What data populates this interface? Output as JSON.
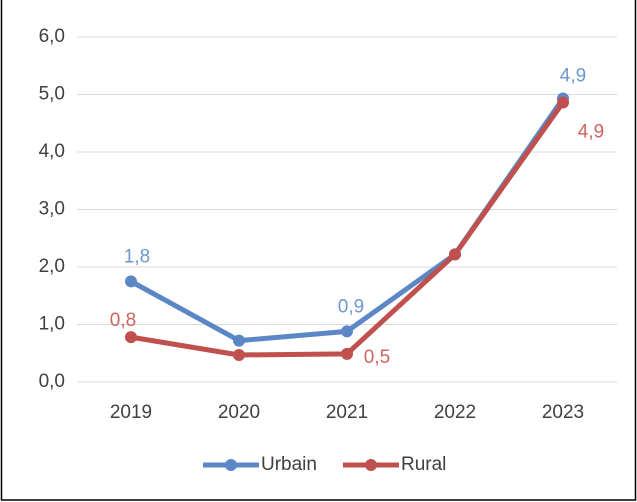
{
  "chart_data": {
    "type": "line",
    "categories": [
      "2019",
      "2020",
      "2021",
      "2022",
      "2023"
    ],
    "series": [
      {
        "name": "Urbain",
        "color": "#5b87c6",
        "label_color": "#6f97cf",
        "values": [
          1.75,
          0.72,
          0.88,
          2.22,
          4.93
        ],
        "value_labels": [
          "1,8",
          null,
          "0,9",
          null,
          "4,9"
        ]
      },
      {
        "name": "Rural",
        "color": "#c0504d",
        "label_color": "#d0635f",
        "values": [
          0.78,
          0.47,
          0.49,
          2.22,
          4.86
        ],
        "value_labels": [
          "0,8",
          null,
          "0,5",
          null,
          "4,9"
        ]
      }
    ],
    "ylim": [
      0,
      6
    ],
    "yticks": [
      {
        "value": 0,
        "label": "0,0"
      },
      {
        "value": 1,
        "label": "1,0"
      },
      {
        "value": 2,
        "label": "2,0"
      },
      {
        "value": 3,
        "label": "3,0"
      },
      {
        "value": 4,
        "label": "4,0"
      },
      {
        "value": 5,
        "label": "5,0"
      },
      {
        "value": 6,
        "label": "6,0"
      }
    ],
    "grid": true,
    "legend": "bottom"
  }
}
